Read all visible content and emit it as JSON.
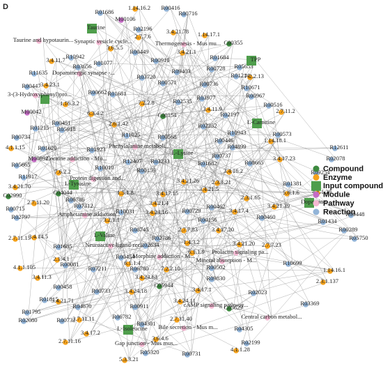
{
  "panel_label": "D",
  "colors": {
    "compound": "#3d8a3f",
    "enzyme": "#f5a21b",
    "input": "#4f9e4c",
    "module": "#c56bc5",
    "pathway": "#f4b8d2",
    "reaction": "#92b4d8"
  },
  "legend": [
    {
      "label": "Compound",
      "kind": "compound"
    },
    {
      "label": "Enzyme",
      "kind": "enzyme"
    },
    {
      "label": "Input compound",
      "kind": "input"
    },
    {
      "label": "Module",
      "kind": "module"
    },
    {
      "label": "Pathway",
      "kind": "pathway"
    },
    {
      "label": "Reaction",
      "kind": "reaction"
    }
  ],
  "nodes": [
    {
      "label": "Taurine",
      "kind": "input"
    },
    {
      "label": "R01686",
      "kind": "reaction"
    },
    {
      "label": "1.14.16.2",
      "kind": "enzyme"
    },
    {
      "label": "R00416",
      "kind": "reaction"
    },
    {
      "label": "R00716",
      "kind": "reaction"
    },
    {
      "label": "M00106",
      "kind": "module"
    },
    {
      "label": "R02196",
      "kind": "reaction"
    },
    {
      "label": "2.7.7.6",
      "kind": "enzyme"
    },
    {
      "label": "3.4.21.78",
      "kind": "enzyme"
    },
    {
      "label": "1.14.17.1",
      "kind": "enzyme"
    },
    {
      "label": "C00355",
      "kind": "compound"
    },
    {
      "label": "Taurine and hypotaurin...",
      "kind": "pathway"
    },
    {
      "label": "Synaptic vesicle cycle...",
      "kind": "pathway"
    },
    {
      "label": "3.6.5.5",
      "kind": "enzyme"
    },
    {
      "label": "Thermogenesis - Mus mu...",
      "kind": "pathway"
    },
    {
      "label": "R00449",
      "kind": "reaction"
    },
    {
      "label": "3.4.21.1",
      "kind": "enzyme"
    },
    {
      "label": "R01684",
      "kind": "reaction"
    },
    {
      "label": "3.4.11.7",
      "kind": "enzyme"
    },
    {
      "label": "R10942",
      "kind": "reaction"
    },
    {
      "label": "R01077",
      "kind": "reaction"
    },
    {
      "label": "R00910",
      "kind": "reaction"
    },
    {
      "label": "R00728",
      "kind": "reaction"
    },
    {
      "label": "R05653",
      "kind": "reaction"
    },
    {
      "label": "TPP",
      "kind": "input"
    },
    {
      "label": "7.2.2.13",
      "kind": "enzyme"
    },
    {
      "label": "R11635",
      "kind": "reaction"
    },
    {
      "label": "Dopaminergic synapse -...",
      "kind": "pathway"
    },
    {
      "label": "R03656",
      "kind": "reaction"
    },
    {
      "label": "R09403",
      "kind": "reaction"
    },
    {
      "label": "R03720",
      "kind": "reaction"
    },
    {
      "label": "R00571",
      "kind": "reaction"
    },
    {
      "label": "R00736",
      "kind": "reaction"
    },
    {
      "label": "R01214",
      "kind": "reaction"
    },
    {
      "label": "R10671",
      "kind": "reaction"
    },
    {
      "label": "R00447",
      "kind": "reaction"
    },
    {
      "label": "3.4.23.1",
      "kind": "enzyme"
    },
    {
      "label": "R00662",
      "kind": "reaction"
    },
    {
      "label": "R01681",
      "kind": "reaction"
    },
    {
      "label": "7.2.2.8",
      "kind": "enzyme"
    },
    {
      "label": "R03977",
      "kind": "reaction"
    },
    {
      "label": "R00967",
      "kind": "reaction"
    },
    {
      "label": "3-(3-Hydroxyphenyl)pro...",
      "kind": "pathway"
    },
    {
      "label": "1.16.3.2",
      "kind": "enzyme"
    },
    {
      "label": "R02535",
      "kind": "reaction"
    },
    {
      "label": "3.4.11.9",
      "kind": "enzyme"
    },
    {
      "label": "R00516",
      "kind": "reaction"
    },
    {
      "label": "M00042",
      "kind": "module"
    },
    {
      "label": "6.3.4.2",
      "kind": "enzyme"
    },
    {
      "label": "C00154",
      "kind": "compound"
    },
    {
      "label": "R02197",
      "kind": "reaction"
    },
    {
      "label": "2.7.11.2",
      "kind": "enzyme"
    },
    {
      "label": "R01215",
      "kind": "reaction"
    },
    {
      "label": "R00451",
      "kind": "reaction"
    },
    {
      "label": "R05918",
      "kind": "reaction"
    },
    {
      "label": "2.6.1.42",
      "kind": "enzyme"
    },
    {
      "label": "R02252",
      "kind": "reaction"
    },
    {
      "label": "L-Carnitine",
      "kind": "input"
    },
    {
      "label": "R11025",
      "kind": "reaction"
    },
    {
      "label": "R00568",
      "kind": "reaction"
    },
    {
      "label": "R10943",
      "kind": "reaction"
    },
    {
      "label": "R00573",
      "kind": "reaction"
    },
    {
      "label": "R00734",
      "kind": "reaction"
    },
    {
      "label": "Phenylalanine metaboli...",
      "kind": "pathway"
    },
    {
      "label": "R00446",
      "kind": "reaction"
    },
    {
      "label": "1.14.18.1",
      "kind": "enzyme"
    },
    {
      "label": "4.1.1.15",
      "kind": "enzyme"
    },
    {
      "label": "R01620",
      "kind": "reaction"
    },
    {
      "label": "R01923",
      "kind": "reaction"
    },
    {
      "label": "R04899",
      "kind": "reaction"
    },
    {
      "label": "R12611",
      "kind": "reaction"
    },
    {
      "label": "M00892",
      "kind": "module"
    },
    {
      "label": "Cocaine addiction - Mu...",
      "kind": "pathway"
    },
    {
      "label": "R12407",
      "kind": "reaction"
    },
    {
      "label": "R03233",
      "kind": "reaction"
    },
    {
      "label": "L-Lysine",
      "kind": "input"
    },
    {
      "label": "R01682",
      "kind": "reaction"
    },
    {
      "label": "R00737",
      "kind": "reaction"
    },
    {
      "label": "R08665",
      "kind": "reaction"
    },
    {
      "label": "3.4.17.23",
      "kind": "enzyme"
    },
    {
      "label": "R02078",
      "kind": "reaction"
    },
    {
      "label": "R05665",
      "kind": "reaction"
    },
    {
      "label": "R10010",
      "kind": "reaction"
    },
    {
      "label": "7.6.2.2",
      "kind": "enzyme"
    },
    {
      "label": "R00159",
      "kind": "reaction"
    },
    {
      "label": "3.4.16.2",
      "kind": "enzyme"
    },
    {
      "label": "R09254",
      "kind": "reaction"
    },
    {
      "label": "Protein digestion and...",
      "kind": "pathway"
    },
    {
      "label": "R11917",
      "kind": "reaction"
    },
    {
      "label": "3.4.21.26",
      "kind": "enzyme"
    },
    {
      "label": "2.3.1.21",
      "kind": "enzyme"
    },
    {
      "label": "R01381",
      "kind": "reaction"
    },
    {
      "label": "3.4.21.70",
      "kind": "enzyme"
    },
    {
      "label": "C04044",
      "kind": "compound"
    },
    {
      "label": "L-Tyrosine",
      "kind": "input"
    },
    {
      "label": "1.5.1.8",
      "kind": "enzyme"
    },
    {
      "label": "3.4.17.15",
      "kind": "enzyme"
    },
    {
      "label": "3.4.21.5",
      "kind": "enzyme"
    },
    {
      "label": "5.6.1.6",
      "kind": "enzyme"
    },
    {
      "label": "4.1.1.29",
      "kind": "enzyme"
    },
    {
      "label": "C02990",
      "kind": "compound"
    },
    {
      "label": "R06786",
      "kind": "reaction"
    },
    {
      "label": "R07312",
      "kind": "reaction"
    },
    {
      "label": "2.7.11.20",
      "kind": "enzyme"
    },
    {
      "label": "3.4.21.4",
      "kind": "enzyme"
    },
    {
      "label": "R00462",
      "kind": "reaction"
    },
    {
      "label": "3.4.21.39",
      "kind": "enzyme"
    },
    {
      "label": "2.3.1.65",
      "kind": "enzyme"
    },
    {
      "label": "R00715",
      "kind": "reaction"
    },
    {
      "label": "Amphetamine addiction...",
      "kind": "pathway"
    },
    {
      "label": "R10031",
      "kind": "reaction"
    },
    {
      "label": "3.4.24.16",
      "kind": "enzyme"
    },
    {
      "label": "R00729",
      "kind": "reaction"
    },
    {
      "label": "3.4.17.4",
      "kind": "enzyme"
    },
    {
      "label": "Dopamine",
      "kind": "input"
    },
    {
      "label": "R00448",
      "kind": "reaction"
    },
    {
      "label": "R02797",
      "kind": "reaction"
    },
    {
      "label": "3.2.1.1",
      "kind": "enzyme"
    },
    {
      "label": "R00156",
      "kind": "reaction"
    },
    {
      "label": "R00460",
      "kind": "reaction"
    },
    {
      "label": "R01434",
      "kind": "reaction"
    },
    {
      "label": "R08745",
      "kind": "reaction"
    },
    {
      "label": "2.7.7.83",
      "kind": "enzyme"
    },
    {
      "label": "3.4.17.20",
      "kind": "enzyme"
    },
    {
      "label": "R00289",
      "kind": "reaction"
    },
    {
      "label": "L-Valine",
      "kind": "input"
    },
    {
      "label": "Neuroactive ligand-rec...",
      "kind": "pathway"
    },
    {
      "label": "R02786",
      "kind": "reaction"
    },
    {
      "label": "2.7.7.23",
      "kind": "enzyme"
    },
    {
      "label": "3.4.14.5",
      "kind": "enzyme"
    },
    {
      "label": "2.7.11.15",
      "kind": "enzyme"
    },
    {
      "label": "R05750",
      "kind": "reaction"
    },
    {
      "label": "R01685",
      "kind": "reaction"
    },
    {
      "label": "R02634",
      "kind": "reaction"
    },
    {
      "label": "1.4.3.2",
      "kind": "enzyme"
    },
    {
      "label": "3.4.21.20",
      "kind": "enzyme"
    },
    {
      "label": "Prolactin signaling pa...",
      "kind": "pathway"
    },
    {
      "label": "6.1.1.9",
      "kind": "enzyme"
    },
    {
      "label": "2.1.4.1",
      "kind": "enzyme"
    },
    {
      "label": "R00081",
      "kind": "reaction"
    },
    {
      "label": "R00454",
      "kind": "reaction"
    },
    {
      "label": "6.1.1.4",
      "kind": "enzyme"
    },
    {
      "label": "Morphine addiction - M...",
      "kind": "pathway"
    },
    {
      "label": "Mineral absorption - M...",
      "kind": "pathway"
    },
    {
      "label": "4.1.1.105",
      "kind": "enzyme"
    },
    {
      "label": "R07211",
      "kind": "reaction"
    },
    {
      "label": "R06780",
      "kind": "reaction"
    },
    {
      "label": "7.2.2.10",
      "kind": "enzyme"
    },
    {
      "label": "R00502",
      "kind": "reaction"
    },
    {
      "label": "R10699",
      "kind": "reaction"
    },
    {
      "label": "1.14.16.1",
      "kind": "enzyme"
    },
    {
      "label": "3.4.24.63",
      "kind": "enzyme"
    },
    {
      "label": "3.4.11.3",
      "kind": "enzyme"
    },
    {
      "label": "C05944",
      "kind": "compound"
    },
    {
      "label": "R09830",
      "kind": "reaction"
    },
    {
      "label": "R00458",
      "kind": "reaction"
    },
    {
      "label": "R00733",
      "kind": "reaction"
    },
    {
      "label": "3.4.24.18",
      "kind": "enzyme"
    },
    {
      "label": "3.4.21.71",
      "kind": "enzyme"
    },
    {
      "label": "3.4.17.1",
      "kind": "enzyme"
    },
    {
      "label": "2.3.1.137",
      "kind": "enzyme"
    },
    {
      "label": "R01795",
      "kind": "reaction"
    },
    {
      "label": "3.4.24.11",
      "kind": "enzyme"
    },
    {
      "label": "R01815",
      "kind": "reaction"
    },
    {
      "label": "R04870",
      "kind": "reaction"
    },
    {
      "label": "cAMP signaling pathway...",
      "kind": "pathway"
    },
    {
      "label": "R02023",
      "kind": "reaction"
    },
    {
      "label": "R00911",
      "kind": "reaction"
    },
    {
      "label": "R06782",
      "kind": "reaction"
    },
    {
      "label": "2.7.11.11",
      "kind": "enzyme"
    },
    {
      "label": "R00732",
      "kind": "reaction"
    },
    {
      "label": "C05629",
      "kind": "compound"
    },
    {
      "label": "R03369",
      "kind": "reaction"
    },
    {
      "label": "2.7.11.40",
      "kind": "enzyme"
    },
    {
      "label": "Central carbon metabol...",
      "kind": "pathway"
    },
    {
      "label": "R02080",
      "kind": "reaction"
    },
    {
      "label": "R04301",
      "kind": "reaction"
    },
    {
      "label": "L-Isoleucine",
      "kind": "input"
    },
    {
      "label": "Bile secretion - Mus m...",
      "kind": "pathway"
    },
    {
      "label": "R04305",
      "kind": "reaction"
    },
    {
      "label": "3.4.17.2",
      "kind": "enzyme"
    },
    {
      "label": "R02199",
      "kind": "reaction"
    },
    {
      "label": "3.6.4.6",
      "kind": "enzyme"
    },
    {
      "label": "2.7.11.16",
      "kind": "enzyme"
    },
    {
      "label": "Gap junction - Mus mus...",
      "kind": "pathway"
    },
    {
      "label": "R05320",
      "kind": "reaction"
    },
    {
      "label": "4.1.1.28",
      "kind": "enzyme"
    },
    {
      "label": "R00731",
      "kind": "reaction"
    },
    {
      "label": "5.3.3.21",
      "kind": "enzyme"
    }
  ]
}
